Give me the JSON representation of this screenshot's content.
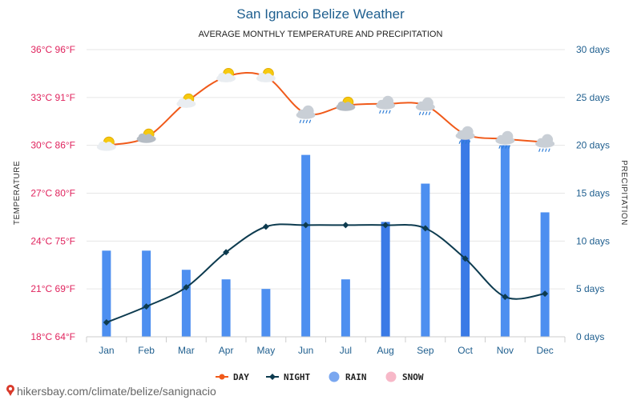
{
  "title": "San Ignacio Belize Weather",
  "subtitle": "AVERAGE MONTHLY TEMPERATURE AND PRECIPITATION",
  "watermark": "hikersbay.com/climate/belize/sanignacio",
  "colors": {
    "day": "#f05a1a",
    "night": "#0d3b4f",
    "rain": "#4d8ff0",
    "rain_dark": "#3a7ae6",
    "snow": "#f7b8c8",
    "left_axis": "#e0245e",
    "right_axis": "#1f5f8f",
    "grid": "#e6e6e6"
  },
  "chart_data": {
    "type": "bar+line",
    "title": "San Ignacio Belize Weather",
    "subtitle": "AVERAGE MONTHLY TEMPERATURE AND PRECIPITATION",
    "categories": [
      "Jan",
      "Feb",
      "Mar",
      "Apr",
      "May",
      "Jun",
      "Jul",
      "Aug",
      "Sep",
      "Oct",
      "Nov",
      "Dec"
    ],
    "series": [
      {
        "name": "DAY",
        "axis": "temperature",
        "unit": "°C",
        "values": [
          30.0,
          30.5,
          32.7,
          34.3,
          34.3,
          32.0,
          32.5,
          32.6,
          32.5,
          30.7,
          30.4,
          30.2
        ]
      },
      {
        "name": "NIGHT",
        "axis": "temperature",
        "unit": "°C",
        "values": [
          18.9,
          19.9,
          21.1,
          23.3,
          24.9,
          25.0,
          25.0,
          25.0,
          24.8,
          22.9,
          20.5,
          20.7
        ]
      },
      {
        "name": "RAIN",
        "axis": "precipitation",
        "unit": "days",
        "values": [
          9,
          9,
          7,
          6,
          5,
          19,
          6,
          12,
          16,
          21,
          20,
          13
        ]
      },
      {
        "name": "SNOW",
        "axis": "precipitation",
        "unit": "days",
        "values": [
          0,
          0,
          0,
          0,
          0,
          0,
          0,
          0,
          0,
          0,
          0,
          0
        ]
      }
    ],
    "weather_icons": [
      "partly-sunny",
      "partly-sunny-cloudy",
      "partly-sunny",
      "sunny-cloud",
      "sunny-cloud",
      "rain-cloud",
      "partly-sunny-cloudy",
      "rain-cloud",
      "rain-cloud",
      "rain-cloud",
      "rain-cloud",
      "rain-cloud"
    ],
    "y_left": {
      "label": "TEMPERATURE",
      "range": [
        18,
        36
      ],
      "ticks": [
        {
          "value": 36,
          "label": "36°C 96°F"
        },
        {
          "value": 33,
          "label": "33°C 91°F"
        },
        {
          "value": 30,
          "label": "30°C 86°F"
        },
        {
          "value": 27,
          "label": "27°C 80°F"
        },
        {
          "value": 24,
          "label": "24°C 75°F"
        },
        {
          "value": 21,
          "label": "21°C 69°F"
        },
        {
          "value": 18,
          "label": "18°C 64°F"
        }
      ]
    },
    "y_right": {
      "label": "PRECIPITATION",
      "range": [
        0,
        30
      ],
      "ticks": [
        {
          "value": 30,
          "label": "30 days"
        },
        {
          "value": 25,
          "label": "25 days"
        },
        {
          "value": 20,
          "label": "20 days"
        },
        {
          "value": 15,
          "label": "15 days"
        },
        {
          "value": 10,
          "label": "10 days"
        },
        {
          "value": 5,
          "label": "5 days"
        },
        {
          "value": 0,
          "label": "0 days"
        }
      ]
    },
    "grid": true,
    "legend": {
      "position": "bottom",
      "items": [
        {
          "name": "DAY",
          "symbol": "line-circle"
        },
        {
          "name": "NIGHT",
          "symbol": "line-diamond"
        },
        {
          "name": "RAIN",
          "symbol": "circle"
        },
        {
          "name": "SNOW",
          "symbol": "circle"
        }
      ]
    }
  }
}
